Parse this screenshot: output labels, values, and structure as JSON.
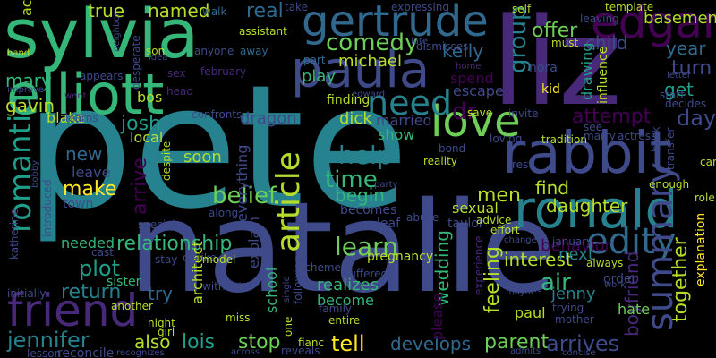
{
  "colors": {
    "background": "#000000",
    "palette": [
      "#440154",
      "#482878",
      "#3e4a89",
      "#31688e",
      "#26828e",
      "#1f9e89",
      "#35b779",
      "#6ece58",
      "#b5de2b",
      "#fde725"
    ]
  },
  "words": [
    {
      "text": "pete",
      "color": "#26828e"
    },
    {
      "text": "natalie",
      "color": "#3e4a89"
    },
    {
      "text": "liz",
      "color": "#482878"
    },
    {
      "text": "sylvia",
      "color": "#35b779"
    },
    {
      "text": "ronald",
      "color": "#26828e"
    },
    {
      "text": "rabbit",
      "color": "#3e4a89"
    },
    {
      "text": "elliott",
      "color": "#35b779"
    },
    {
      "text": "gertrude",
      "color": "#31688e"
    },
    {
      "text": "paula",
      "color": "#3e4a89"
    },
    {
      "text": "edgar",
      "color": "#440154"
    },
    {
      "text": "friend",
      "color": "#482878"
    },
    {
      "text": "love",
      "color": "#6ece58"
    },
    {
      "text": "need",
      "color": "#26828e"
    },
    {
      "text": "edity",
      "color": "#31688e"
    },
    {
      "text": "summary",
      "color": "#3e4a89"
    },
    {
      "text": "romantic",
      "color": "#1f9e89"
    },
    {
      "text": "article",
      "color": "#b5de2b"
    },
    {
      "text": "comedy",
      "color": "#6ece58"
    },
    {
      "text": "kelly",
      "color": "#31688e"
    },
    {
      "text": "group",
      "color": "#26828e"
    },
    {
      "text": "help",
      "color": "#26828e"
    },
    {
      "text": "time",
      "color": "#35b779"
    },
    {
      "text": "learn",
      "color": "#6ece58"
    },
    {
      "text": "belief",
      "color": "#6ece58"
    },
    {
      "text": "make",
      "color": "#fde725"
    },
    {
      "text": "relationship",
      "color": "#35b779"
    },
    {
      "text": "plot",
      "color": "#1f9e89"
    },
    {
      "text": "return",
      "color": "#26828e"
    },
    {
      "text": "jennifer",
      "color": "#26828e"
    },
    {
      "text": "lois",
      "color": "#1f9e89"
    },
    {
      "text": "stop",
      "color": "#6ece58"
    },
    {
      "text": "tell",
      "color": "#fde725"
    },
    {
      "text": "develops",
      "color": "#31688e"
    },
    {
      "text": "parent",
      "color": "#6ece58"
    },
    {
      "text": "arrives",
      "color": "#3e4a89"
    },
    {
      "text": "feeling",
      "color": "#b5de2b"
    },
    {
      "text": "wedding",
      "color": "#35b779"
    },
    {
      "text": "air",
      "color": "#35b779"
    },
    {
      "text": "jenny",
      "color": "#26828e"
    },
    {
      "text": "boyfriend",
      "color": "#482878"
    },
    {
      "text": "together",
      "color": "#b5de2b"
    },
    {
      "text": "attempt",
      "color": "#440154"
    },
    {
      "text": "day",
      "color": "#3e4a89"
    },
    {
      "text": "get",
      "color": "#1f9e89"
    },
    {
      "text": "turn",
      "color": "#3e4a89"
    },
    {
      "text": "year",
      "color": "#31688e"
    },
    {
      "text": "child",
      "color": "#3e4a89"
    },
    {
      "text": "offer",
      "color": "#6ece58"
    },
    {
      "text": "basement",
      "color": "#b5de2b"
    },
    {
      "text": "named",
      "color": "#b5de2b"
    },
    {
      "text": "true",
      "color": "#b5de2b"
    },
    {
      "text": "real",
      "color": "#31688e"
    },
    {
      "text": "mary",
      "color": "#35b779"
    },
    {
      "text": "gavin",
      "color": "#b5de2b"
    },
    {
      "text": "josh",
      "color": "#1f9e89"
    },
    {
      "text": "new",
      "color": "#31688e"
    },
    {
      "text": "arrive",
      "color": "#440154"
    },
    {
      "text": "begin",
      "color": "#35b779"
    },
    {
      "text": "men",
      "color": "#b5de2b"
    },
    {
      "text": "find",
      "color": "#b5de2b"
    },
    {
      "text": "daughter",
      "color": "#b5de2b"
    },
    {
      "text": "interest",
      "color": "#b5de2b"
    },
    {
      "text": "next",
      "color": "#26828e"
    },
    {
      "text": "behavior",
      "color": "#440154"
    },
    {
      "text": "also",
      "color": "#b5de2b"
    },
    {
      "text": "try",
      "color": "#31688e"
    },
    {
      "text": "drawing",
      "color": "#1f9e89"
    },
    {
      "text": "michael",
      "color": "#b5de2b"
    },
    {
      "text": "dr",
      "color": "#440154"
    },
    {
      "text": "blake",
      "color": "#b5de2b"
    },
    {
      "text": "dragon",
      "color": "#3e4a89"
    },
    {
      "text": "dick",
      "color": "#b5de2b"
    },
    {
      "text": "married",
      "color": "#3e4a89"
    },
    {
      "text": "show",
      "color": "#35b779"
    },
    {
      "text": "finding",
      "color": "#b5de2b"
    },
    {
      "text": "play",
      "color": "#35b779"
    },
    {
      "text": "bos",
      "color": "#b5de2b"
    },
    {
      "text": "local",
      "color": "#b5de2b"
    },
    {
      "text": "leave",
      "color": "#3e4a89"
    },
    {
      "text": "soon",
      "color": "#b5de2b"
    },
    {
      "text": "town",
      "color": "#3e4a89"
    },
    {
      "text": "explain",
      "color": "#3e4a89"
    },
    {
      "text": "everything",
      "color": "#3e4a89"
    },
    {
      "text": "needed",
      "color": "#35b779"
    },
    {
      "text": "school",
      "color": "#35b779"
    },
    {
      "text": "architect",
      "color": "#b5de2b"
    },
    {
      "text": "realizes",
      "color": "#35b779"
    },
    {
      "text": "become",
      "color": "#35b779"
    },
    {
      "text": "please",
      "color": "#440154"
    },
    {
      "text": "paul",
      "color": "#b5de2b"
    },
    {
      "text": "hate",
      "color": "#6ece58"
    },
    {
      "text": "sister",
      "color": "#35b779"
    },
    {
      "text": "accepts",
      "color": "#b5de2b"
    },
    {
      "text": "spend",
      "color": "#440154"
    },
    {
      "text": "escape",
      "color": "#3e4a89"
    },
    {
      "text": "nora",
      "color": "#3e4a89"
    },
    {
      "text": "kid",
      "color": "#fde725"
    },
    {
      "text": "sexual",
      "color": "#b5de2b"
    },
    {
      "text": "taylor",
      "color": "#3e4a89"
    },
    {
      "text": "pregnancy",
      "color": "#b5de2b"
    },
    {
      "text": "explanation",
      "color": "#fde725"
    },
    {
      "text": "order",
      "color": "#3e4a89"
    },
    {
      "text": "always",
      "color": "#b5de2b"
    },
    {
      "text": "walk",
      "color": "#31688e"
    },
    {
      "text": "take",
      "color": "#3e4a89"
    },
    {
      "text": "expressing",
      "color": "#3e4a89"
    },
    {
      "text": "self",
      "color": "#b5de2b"
    },
    {
      "text": "template",
      "color": "#b5de2b"
    },
    {
      "text": "assistant",
      "color": "#b5de2b"
    },
    {
      "text": "anyone",
      "color": "#3e4a89"
    },
    {
      "text": "away",
      "color": "#31688e"
    },
    {
      "text": "february",
      "color": "#482878"
    },
    {
      "text": "sex",
      "color": "#482878"
    },
    {
      "text": "son",
      "color": "#b5de2b"
    },
    {
      "text": "idea",
      "color": "#3e4a89"
    },
    {
      "text": "desperate",
      "color": "#3e4a89"
    },
    {
      "text": "neighbor",
      "color": "#3e4a89"
    },
    {
      "text": "hand",
      "color": "#b5de2b"
    },
    {
      "text": "improve",
      "color": "#3e4a89"
    },
    {
      "text": "appears",
      "color": "#3e4a89"
    },
    {
      "text": "learns",
      "color": "#3e4a89"
    },
    {
      "text": "confronts",
      "color": "#3e4a89"
    },
    {
      "text": "part",
      "color": "#31688e"
    },
    {
      "text": "dismisses",
      "color": "#3e4a89"
    },
    {
      "text": "late",
      "color": "#3e4a89"
    },
    {
      "text": "must",
      "color": "#b5de2b"
    },
    {
      "text": "leaving",
      "color": "#3e4a89"
    },
    {
      "text": "letter",
      "color": "#3e4a89"
    },
    {
      "text": "start",
      "color": "#3e4a89"
    },
    {
      "text": "decides",
      "color": "#3e4a89"
    },
    {
      "text": "influence",
      "color": "#b5de2b"
    },
    {
      "text": "save",
      "color": "#b5de2b"
    },
    {
      "text": "invite",
      "color": "#3e4a89"
    },
    {
      "text": "loving",
      "color": "#3e4a89"
    },
    {
      "text": "tradition",
      "color": "#b5de2b"
    },
    {
      "text": "see",
      "color": "#3e4a89"
    },
    {
      "text": "marry",
      "color": "#3e4a89"
    },
    {
      "text": "actress",
      "color": "#3e4a89"
    },
    {
      "text": "transfer",
      "color": "#3e4a89"
    },
    {
      "text": "car",
      "color": "#b5de2b"
    },
    {
      "text": "role",
      "color": "#b5de2b"
    },
    {
      "text": "bond",
      "color": "#3e4a89"
    },
    {
      "text": "reality",
      "color": "#b5de2b"
    },
    {
      "text": "rest",
      "color": "#3e4a89"
    },
    {
      "text": "enough",
      "color": "#b5de2b"
    },
    {
      "text": "abuse",
      "color": "#3e4a89"
    },
    {
      "text": "advice",
      "color": "#b5de2b"
    },
    {
      "text": "effort",
      "color": "#b5de2b"
    },
    {
      "text": "change",
      "color": "#3e4a89"
    },
    {
      "text": "january",
      "color": "#3e4a89"
    },
    {
      "text": "leaf",
      "color": "#3e4a89"
    },
    {
      "text": "becomes",
      "color": "#3e4a89"
    },
    {
      "text": "along",
      "color": "#3e4a89"
    },
    {
      "text": "special",
      "color": "#3e4a89"
    },
    {
      "text": "cast",
      "color": "#3e4a89"
    },
    {
      "text": "stay",
      "color": "#3e4a89"
    },
    {
      "text": "dislike",
      "color": "#3e4a89"
    },
    {
      "text": "model",
      "color": "#b5de2b"
    },
    {
      "text": "without",
      "color": "#3e4a89"
    },
    {
      "text": "scheme",
      "color": "#3e4a89"
    },
    {
      "text": "suffered",
      "color": "#3e4a89"
    },
    {
      "text": "later",
      "color": "#3e4a89"
    },
    {
      "text": "initially",
      "color": "#3e4a89"
    },
    {
      "text": "another",
      "color": "#b5de2b"
    },
    {
      "text": "night",
      "color": "#b5de2b"
    },
    {
      "text": "girl",
      "color": "#b5de2b"
    },
    {
      "text": "miss",
      "color": "#b5de2b"
    },
    {
      "text": "family",
      "color": "#3e4a89"
    },
    {
      "text": "entire",
      "color": "#b5de2b"
    },
    {
      "text": "visit",
      "color": "#3e4a89"
    },
    {
      "text": "mayor",
      "color": "#3e4a89"
    },
    {
      "text": "trying",
      "color": "#3e4a89"
    },
    {
      "text": "work",
      "color": "#3e4a89"
    },
    {
      "text": "mother",
      "color": "#3e4a89"
    },
    {
      "text": "lesson",
      "color": "#3e4a89"
    },
    {
      "text": "reconcile",
      "color": "#3e4a89"
    },
    {
      "text": "recognizes",
      "color": "#3e4a89"
    },
    {
      "text": "across",
      "color": "#3e4a89"
    },
    {
      "text": "reveals",
      "color": "#3e4a89"
    },
    {
      "text": "admits",
      "color": "#3e4a89"
    },
    {
      "text": "concise",
      "color": "#3e4a89"
    },
    {
      "text": "despite",
      "color": "#b5de2b"
    },
    {
      "text": "introduced",
      "color": "#3e4a89"
    },
    {
      "text": "katherine",
      "color": "#3e4a89"
    },
    {
      "text": "bobby",
      "color": "#3e4a89"
    },
    {
      "text": "head",
      "color": "#482878"
    },
    {
      "text": "edward",
      "color": "#3e4a89"
    },
    {
      "text": "one",
      "color": "#b5de2b"
    },
    {
      "text": "fianc",
      "color": "#b5de2b"
    },
    {
      "text": "following",
      "color": "#3e4a89"
    },
    {
      "text": "experience",
      "color": "#482878"
    },
    {
      "text": "back",
      "color": "#3e4a89"
    },
    {
      "text": "party",
      "color": "#3e4a89"
    },
    {
      "text": "single",
      "color": "#3e4a89"
    },
    {
      "text": "went",
      "color": "#482878"
    },
    {
      "text": "home",
      "color": "#482878"
    }
  ]
}
